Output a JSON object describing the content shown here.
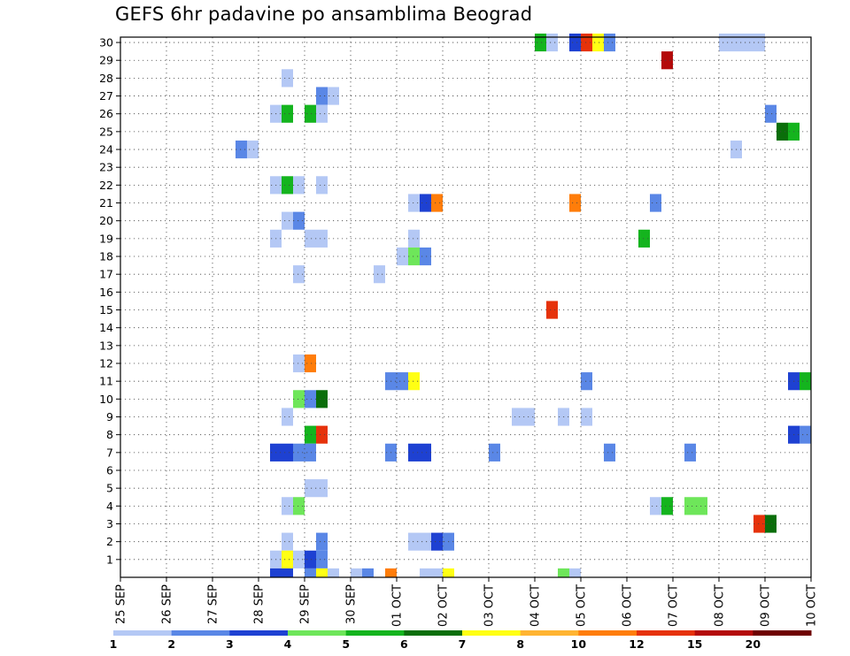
{
  "chart_data": {
    "type": "heatmap",
    "title": "GEFS 6hr padavine po ansamblima Beograd",
    "x_tick_labels": [
      "25 SEP",
      "26 SEP",
      "27 SEP",
      "28 SEP",
      "29 SEP",
      "30 SEP",
      "01 OCT",
      "02 OCT",
      "03 OCT",
      "04 OCT",
      "05 OCT",
      "06 OCT",
      "07 OCT",
      "08 OCT",
      "09 OCT",
      "10 OCT"
    ],
    "y_tick_labels": [
      "1",
      "2",
      "3",
      "4",
      "5",
      "6",
      "7",
      "8",
      "9",
      "10",
      "11",
      "12",
      "13",
      "14",
      "15",
      "16",
      "17",
      "18",
      "19",
      "20",
      "21",
      "22",
      "23",
      "24",
      "25",
      "26",
      "27",
      "28",
      "29",
      "30"
    ],
    "y_range": [
      0,
      30
    ],
    "x_range_days": [
      0,
      15
    ],
    "grid": true,
    "legend": {
      "placement": "bottom",
      "labels": [
        "1",
        "2",
        "3",
        "4",
        "5",
        "6",
        "7",
        "8",
        "10",
        "12",
        "15",
        "20"
      ],
      "colors": [
        "#b4c8f5",
        "#5a87e6",
        "#1e41d2",
        "#6ee65a",
        "#14b41e",
        "#0a6e0a",
        "#ffff14",
        "#ffb432",
        "#ff7d0a",
        "#e6320a",
        "#b40a0a",
        "#6e0000"
      ]
    },
    "cells": [
      {
        "t": 36,
        "m": 30,
        "v": 5
      },
      {
        "t": 37,
        "m": 30,
        "v": 1
      },
      {
        "t": 39,
        "m": 30,
        "v": 3
      },
      {
        "t": 40,
        "m": 30,
        "v": 12
      },
      {
        "t": 41,
        "m": 30,
        "v": 7
      },
      {
        "t": 42,
        "m": 30,
        "v": 2
      },
      {
        "t": 52,
        "m": 30,
        "v": 1
      },
      {
        "t": 53,
        "m": 30,
        "v": 1
      },
      {
        "t": 54,
        "m": 30,
        "v": 1
      },
      {
        "t": 55,
        "m": 30,
        "v": 1
      },
      {
        "t": 47,
        "m": 29,
        "v": 15
      },
      {
        "t": 14,
        "m": 28,
        "v": 1
      },
      {
        "t": 17,
        "m": 27,
        "v": 2
      },
      {
        "t": 18,
        "m": 27,
        "v": 1
      },
      {
        "t": 13,
        "m": 26,
        "v": 1
      },
      {
        "t": 14,
        "m": 26,
        "v": 5
      },
      {
        "t": 16,
        "m": 26,
        "v": 5
      },
      {
        "t": 17,
        "m": 26,
        "v": 1
      },
      {
        "t": 56,
        "m": 26,
        "v": 2
      },
      {
        "t": 57,
        "m": 25,
        "v": 6
      },
      {
        "t": 58,
        "m": 25,
        "v": 5
      },
      {
        "t": 53,
        "m": 24,
        "v": 1
      },
      {
        "t": 10,
        "m": 24,
        "v": 2
      },
      {
        "t": 11,
        "m": 24,
        "v": 1
      },
      {
        "t": 13,
        "m": 22,
        "v": 1
      },
      {
        "t": 14,
        "m": 22,
        "v": 5
      },
      {
        "t": 15,
        "m": 22,
        "v": 1
      },
      {
        "t": 17,
        "m": 22,
        "v": 1
      },
      {
        "t": 25,
        "m": 21,
        "v": 1
      },
      {
        "t": 26,
        "m": 21,
        "v": 3
      },
      {
        "t": 27,
        "m": 21,
        "v": 10
      },
      {
        "t": 39,
        "m": 21,
        "v": 10
      },
      {
        "t": 46,
        "m": 21,
        "v": 2
      },
      {
        "t": 14,
        "m": 20,
        "v": 1
      },
      {
        "t": 15,
        "m": 20,
        "v": 2
      },
      {
        "t": 13,
        "m": 19,
        "v": 1
      },
      {
        "t": 16,
        "m": 19,
        "v": 1
      },
      {
        "t": 17,
        "m": 19,
        "v": 1
      },
      {
        "t": 25,
        "m": 19,
        "v": 1
      },
      {
        "t": 45,
        "m": 19,
        "v": 5
      },
      {
        "t": 24,
        "m": 18,
        "v": 1
      },
      {
        "t": 25,
        "m": 18,
        "v": 4
      },
      {
        "t": 26,
        "m": 18,
        "v": 2
      },
      {
        "t": 15,
        "m": 17,
        "v": 1
      },
      {
        "t": 22,
        "m": 17,
        "v": 1
      },
      {
        "t": 37,
        "m": 15,
        "v": 12
      },
      {
        "t": 15,
        "m": 12,
        "v": 1
      },
      {
        "t": 16,
        "m": 12,
        "v": 10
      },
      {
        "t": 23,
        "m": 11,
        "v": 2
      },
      {
        "t": 24,
        "m": 11,
        "v": 2
      },
      {
        "t": 25,
        "m": 11,
        "v": 7
      },
      {
        "t": 40,
        "m": 11,
        "v": 2
      },
      {
        "t": 58,
        "m": 11,
        "v": 3
      },
      {
        "t": 59,
        "m": 11,
        "v": 5
      },
      {
        "t": 15,
        "m": 10,
        "v": 4
      },
      {
        "t": 16,
        "m": 10,
        "v": 2
      },
      {
        "t": 17,
        "m": 10,
        "v": 6
      },
      {
        "t": 14,
        "m": 9,
        "v": 1
      },
      {
        "t": 34,
        "m": 9,
        "v": 1
      },
      {
        "t": 35,
        "m": 9,
        "v": 1
      },
      {
        "t": 38,
        "m": 9,
        "v": 1
      },
      {
        "t": 40,
        "m": 9,
        "v": 1
      },
      {
        "t": 16,
        "m": 8,
        "v": 5
      },
      {
        "t": 17,
        "m": 8,
        "v": 12
      },
      {
        "t": 58,
        "m": 8,
        "v": 3
      },
      {
        "t": 59,
        "m": 8,
        "v": 2
      },
      {
        "t": 13,
        "m": 7,
        "v": 3
      },
      {
        "t": 14,
        "m": 7,
        "v": 3
      },
      {
        "t": 15,
        "m": 7,
        "v": 2
      },
      {
        "t": 16,
        "m": 7,
        "v": 2
      },
      {
        "t": 23,
        "m": 7,
        "v": 2
      },
      {
        "t": 25,
        "m": 7,
        "v": 3
      },
      {
        "t": 26,
        "m": 7,
        "v": 3
      },
      {
        "t": 32,
        "m": 7,
        "v": 2
      },
      {
        "t": 42,
        "m": 7,
        "v": 2
      },
      {
        "t": 49,
        "m": 7,
        "v": 2
      },
      {
        "t": 16,
        "m": 5,
        "v": 1
      },
      {
        "t": 17,
        "m": 5,
        "v": 1
      },
      {
        "t": 14,
        "m": 4,
        "v": 1
      },
      {
        "t": 15,
        "m": 4,
        "v": 4
      },
      {
        "t": 46,
        "m": 4,
        "v": 1
      },
      {
        "t": 47,
        "m": 4,
        "v": 5
      },
      {
        "t": 49,
        "m": 4,
        "v": 4
      },
      {
        "t": 50,
        "m": 4,
        "v": 4
      },
      {
        "t": 55,
        "m": 3,
        "v": 12
      },
      {
        "t": 56,
        "m": 3,
        "v": 6
      },
      {
        "t": 14,
        "m": 2,
        "v": 1
      },
      {
        "t": 17,
        "m": 2,
        "v": 2
      },
      {
        "t": 25,
        "m": 2,
        "v": 1
      },
      {
        "t": 26,
        "m": 2,
        "v": 1
      },
      {
        "t": 27,
        "m": 2,
        "v": 3
      },
      {
        "t": 28,
        "m": 2,
        "v": 2
      },
      {
        "t": 13,
        "m": 1,
        "v": 1
      },
      {
        "t": 14,
        "m": 1,
        "v": 7
      },
      {
        "t": 15,
        "m": 1,
        "v": 1
      },
      {
        "t": 16,
        "m": 1,
        "v": 3
      },
      {
        "t": 17,
        "m": 1,
        "v": 2
      },
      {
        "t": 13,
        "m": 0,
        "v": 3
      },
      {
        "t": 14,
        "m": 0,
        "v": 3
      },
      {
        "t": 16,
        "m": 0,
        "v": 2
      },
      {
        "t": 17,
        "m": 0,
        "v": 7
      },
      {
        "t": 18,
        "m": 0,
        "v": 1
      },
      {
        "t": 20,
        "m": 0,
        "v": 1
      },
      {
        "t": 21,
        "m": 0,
        "v": 2
      },
      {
        "t": 23,
        "m": 0,
        "v": 10
      },
      {
        "t": 26,
        "m": 0,
        "v": 1
      },
      {
        "t": 27,
        "m": 0,
        "v": 1
      },
      {
        "t": 28,
        "m": 0,
        "v": 7
      },
      {
        "t": 38,
        "m": 0,
        "v": 4
      },
      {
        "t": 39,
        "m": 0,
        "v": 1
      }
    ]
  }
}
